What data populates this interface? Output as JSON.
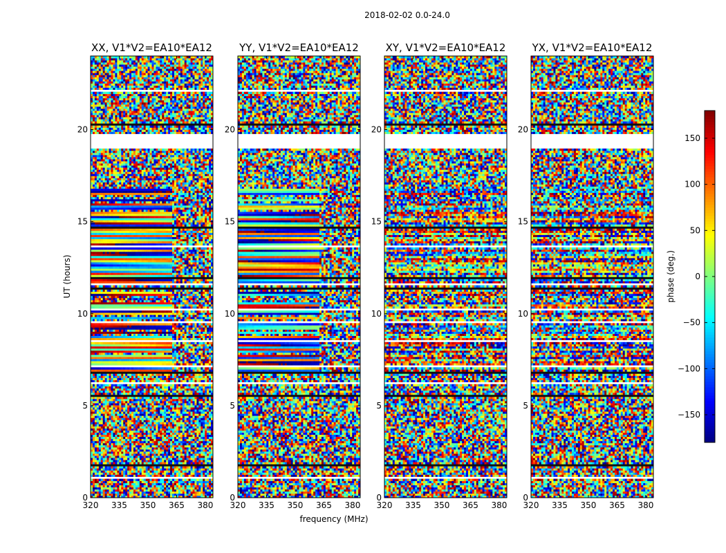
{
  "figure": {
    "suptitle": "2018-02-02 0.0-24.0",
    "xlabel": "frequency (MHz)",
    "ylabel": "UT (hours)"
  },
  "colormap": "jet",
  "chart_data": {
    "type": "heatmap",
    "value_label": "phase (deg.)",
    "value_range": [
      -180,
      180
    ],
    "x_range": [
      320,
      384
    ],
    "y_range": [
      0,
      24
    ],
    "x_ticks": [
      320,
      335,
      350,
      365,
      380
    ],
    "y_ticks": [
      0,
      5,
      10,
      15,
      20
    ],
    "colorbar_ticks": [
      150,
      100,
      50,
      0,
      -50,
      -100,
      -150
    ],
    "colorbar_tick_labels": [
      "150",
      "100",
      "50",
      "0",
      "−50",
      "−100",
      "−150"
    ],
    "grid": false,
    "panels": [
      {
        "title": "XX, V1*V2=EA10*EA12"
      },
      {
        "title": "YY, V1*V2=EA10*EA12"
      },
      {
        "title": "XY, V1*V2=EA10*EA12"
      },
      {
        "title": "YX, V1*V2=EA10*EA12"
      }
    ]
  }
}
